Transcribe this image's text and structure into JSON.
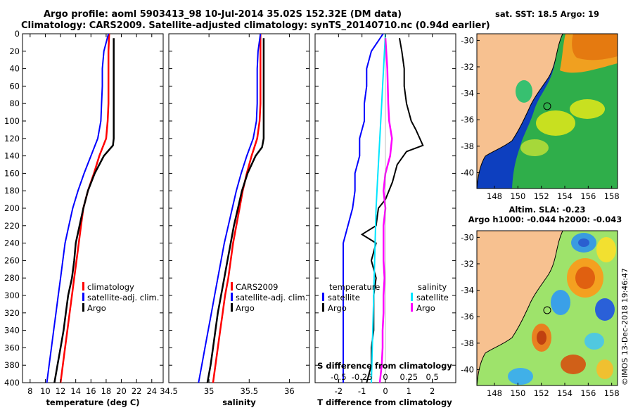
{
  "header": {
    "line1": "Argo profile: aoml 5903413_98 10-Jul-2014 35.02S 152.32E (DM data)",
    "line2": "Climatology: CARS2009. Satellite-adjusted climatology: synTS_20140710.nc (0.94d earlier)"
  },
  "watermark": "©IMOS 13-Dec-2018 19:46:47",
  "colors": {
    "argo": "#000000",
    "clim": "#ff0000",
    "sat": "#0000ff",
    "sat_s": "#00e5ff",
    "argo_s": "#ff00ff",
    "land": "#f7c190"
  },
  "chart_data": [
    {
      "type": "line",
      "id": "temperature",
      "xlabel": "temperature (deg C)",
      "xticks": [
        8,
        10,
        12,
        14,
        16,
        18,
        20,
        22,
        24
      ],
      "xlim": [
        7,
        25.5
      ],
      "ylim": [
        0,
        400
      ],
      "yticks": [
        0,
        20,
        40,
        60,
        80,
        100,
        120,
        140,
        160,
        180,
        200,
        220,
        240,
        260,
        280,
        300,
        320,
        340,
        360,
        380,
        400
      ],
      "legend": [
        "climatology",
        "satellite-adj. clim.",
        "Argo"
      ],
      "series": [
        {
          "name": "climatology",
          "color": "#ff0000",
          "depth": [
            0,
            20,
            40,
            60,
            80,
            100,
            120,
            140,
            160,
            180,
            200,
            220,
            240,
            260,
            280,
            300,
            320,
            340,
            360,
            380,
            400
          ],
          "values": [
            18.4,
            18.3,
            18.3,
            18.3,
            18.3,
            18.2,
            18.0,
            17.1,
            16.4,
            15.6,
            15.0,
            14.7,
            14.4,
            14.1,
            13.8,
            13.5,
            13.2,
            12.9,
            12.6,
            12.3,
            12.0
          ]
        },
        {
          "name": "satellite-adj. clim.",
          "color": "#0000ff",
          "depth": [
            0,
            20,
            40,
            60,
            80,
            100,
            120,
            140,
            160,
            180,
            200,
            220,
            240,
            260,
            280,
            300,
            320,
            340,
            360,
            380,
            400
          ],
          "values": [
            18.3,
            17.7,
            17.5,
            17.5,
            17.4,
            17.3,
            16.9,
            16.0,
            15.1,
            14.3,
            13.6,
            13.1,
            12.6,
            12.3,
            12.0,
            11.7,
            11.4,
            11.1,
            10.8,
            10.5,
            10.2
          ]
        },
        {
          "name": "Argo",
          "color": "#000000",
          "depth": [
            5,
            20,
            40,
            60,
            80,
            100,
            120,
            128,
            140,
            160,
            180,
            200,
            220,
            240,
            260,
            280,
            300,
            320,
            340,
            360,
            380,
            400
          ],
          "values": [
            19.0,
            19.0,
            19.0,
            19.0,
            19.0,
            19.0,
            19.0,
            18.9,
            17.7,
            16.5,
            15.6,
            15.0,
            14.5,
            14.0,
            13.8,
            13.5,
            13.0,
            12.7,
            12.4,
            12.0,
            11.6,
            11.2
          ]
        }
      ]
    },
    {
      "type": "line",
      "id": "salinity",
      "xlabel": "salinity",
      "xticks": [
        34.5,
        35,
        35.5,
        36
      ],
      "xtick_labels": [
        "34.5",
        "35",
        "35.5",
        "36"
      ],
      "xlim": [
        34.5,
        36.25
      ],
      "ylim": [
        0,
        400
      ],
      "legend": [
        "CARS2009",
        "satellite-adj. clim.",
        "Argo"
      ],
      "series": [
        {
          "name": "CARS2009",
          "color": "#ff0000",
          "depth": [
            0,
            20,
            40,
            60,
            80,
            100,
            120,
            140,
            160,
            180,
            200,
            220,
            240,
            260,
            280,
            300,
            320,
            340,
            360,
            380,
            400
          ],
          "values": [
            35.64,
            35.64,
            35.64,
            35.64,
            35.64,
            35.63,
            35.6,
            35.53,
            35.47,
            35.42,
            35.38,
            35.34,
            35.3,
            35.27,
            35.24,
            35.2,
            35.17,
            35.14,
            35.11,
            35.08,
            35.05
          ]
        },
        {
          "name": "satellite-adj. clim.",
          "color": "#0000ff",
          "depth": [
            0,
            20,
            40,
            60,
            80,
            100,
            120,
            140,
            160,
            180,
            200,
            220,
            240,
            260,
            280,
            300,
            320,
            340,
            360,
            380,
            400
          ],
          "values": [
            35.64,
            35.61,
            35.6,
            35.6,
            35.6,
            35.59,
            35.55,
            35.47,
            35.4,
            35.34,
            35.29,
            35.24,
            35.19,
            35.15,
            35.11,
            35.07,
            35.03,
            34.99,
            34.95,
            34.91,
            34.87
          ]
        },
        {
          "name": "Argo",
          "color": "#000000",
          "depth": [
            5,
            20,
            40,
            60,
            80,
            100,
            120,
            130,
            140,
            160,
            180,
            200,
            220,
            240,
            260,
            280,
            300,
            320,
            340,
            360,
            380,
            400
          ],
          "values": [
            35.68,
            35.68,
            35.68,
            35.68,
            35.68,
            35.68,
            35.68,
            35.66,
            35.58,
            35.48,
            35.41,
            35.36,
            35.31,
            35.27,
            35.23,
            35.19,
            35.15,
            35.11,
            35.08,
            35.05,
            35.02,
            34.98
          ]
        }
      ]
    },
    {
      "type": "line",
      "id": "differences",
      "xlabel": "T difference from climatology",
      "xlabel_top": "S difference from climatology",
      "xticks": [
        -2,
        -1,
        0,
        1,
        2
      ],
      "xtick_labels": [
        "-2",
        "-1",
        "0",
        "1",
        "2"
      ],
      "xticks_s": [
        -0.5,
        -0.25,
        0,
        0.25,
        0.5
      ],
      "xtick_labels_s": [
        "-0.5",
        "-0.25",
        "0",
        "0.25",
        "0.5"
      ],
      "xlim": [
        -3,
        3
      ],
      "ylim": [
        0,
        400
      ],
      "legend_temperature": {
        "title": "temperature",
        "items": [
          "satellite",
          "Argo"
        ]
      },
      "legend_salinity": {
        "title": "salinity",
        "items": [
          "satellite",
          "Argo"
        ]
      },
      "series": [
        {
          "name": "T satellite",
          "color": "#0000ff",
          "depth": [
            0,
            20,
            40,
            60,
            80,
            100,
            120,
            140,
            160,
            180,
            200,
            220,
            240,
            260,
            280,
            300,
            320,
            340,
            360,
            380,
            400
          ],
          "values": [
            -0.1,
            -0.6,
            -0.8,
            -0.8,
            -0.9,
            -0.9,
            -1.1,
            -1.1,
            -1.3,
            -1.3,
            -1.4,
            -1.6,
            -1.8,
            -1.8,
            -1.8,
            -1.8,
            -1.8,
            -1.8,
            -1.8,
            -1.8,
            -1.8
          ]
        },
        {
          "name": "T Argo",
          "color": "#000000",
          "depth": [
            5,
            20,
            40,
            60,
            80,
            100,
            110,
            128,
            135,
            150,
            170,
            190,
            200,
            220,
            230,
            240,
            260,
            280,
            300,
            320,
            340,
            360,
            380,
            400
          ],
          "values": [
            0.6,
            0.7,
            0.8,
            0.8,
            0.9,
            1.1,
            1.3,
            1.6,
            0.9,
            0.5,
            0.3,
            0.0,
            -0.3,
            -0.4,
            -1.0,
            -0.4,
            -0.6,
            -0.4,
            -0.5,
            -0.5,
            -0.5,
            -0.6,
            -0.6,
            -0.8
          ]
        },
        {
          "name": "S satellite",
          "color": "#00e5ff",
          "depth": [
            0,
            40,
            80,
            120,
            160,
            200,
            240,
            280,
            320,
            360,
            400
          ],
          "values": [
            0.0,
            -0.02,
            -0.04,
            -0.06,
            -0.08,
            -0.1,
            -0.11,
            -0.12,
            -0.13,
            -0.14,
            -0.15
          ]
        },
        {
          "name": "S Argo",
          "color": "#ff00ff",
          "depth": [
            5,
            40,
            80,
            100,
            120,
            140,
            160,
            180,
            200,
            220,
            240,
            260,
            280,
            300,
            320,
            340,
            360,
            380,
            400
          ],
          "values": [
            0.0,
            0.02,
            0.03,
            0.04,
            0.07,
            0.05,
            0.0,
            -0.02,
            0.0,
            -0.02,
            -0.02,
            -0.02,
            -0.01,
            -0.02,
            -0.02,
            -0.03,
            -0.03,
            -0.04,
            -0.06
          ]
        }
      ]
    },
    {
      "type": "heatmap",
      "id": "sst-map",
      "title": "sat. SST: 18.5 Argo: 19",
      "yticks": [
        -30,
        -32,
        -34,
        -36,
        -38,
        -40
      ],
      "xticks": [
        148,
        150,
        152,
        154,
        156,
        158
      ],
      "xlim": [
        146.5,
        158.5
      ],
      "ylim": [
        -41.2,
        -29.5
      ],
      "marker": {
        "lon": 152.32,
        "lat": -35.02
      }
    },
    {
      "type": "heatmap",
      "id": "sla-map",
      "title": "Altim. SLA: -0.23",
      "subtitle": "Argo h1000: -0.044 h2000: -0.043",
      "yticks": [
        -30,
        -32,
        -34,
        -36,
        -38,
        -40
      ],
      "xticks": [
        148,
        150,
        152,
        154,
        156,
        158
      ],
      "xlim": [
        146.5,
        158.5
      ],
      "ylim": [
        -41.2,
        -29.5
      ],
      "marker": {
        "lon": 152.32,
        "lat": -35.02
      }
    }
  ]
}
